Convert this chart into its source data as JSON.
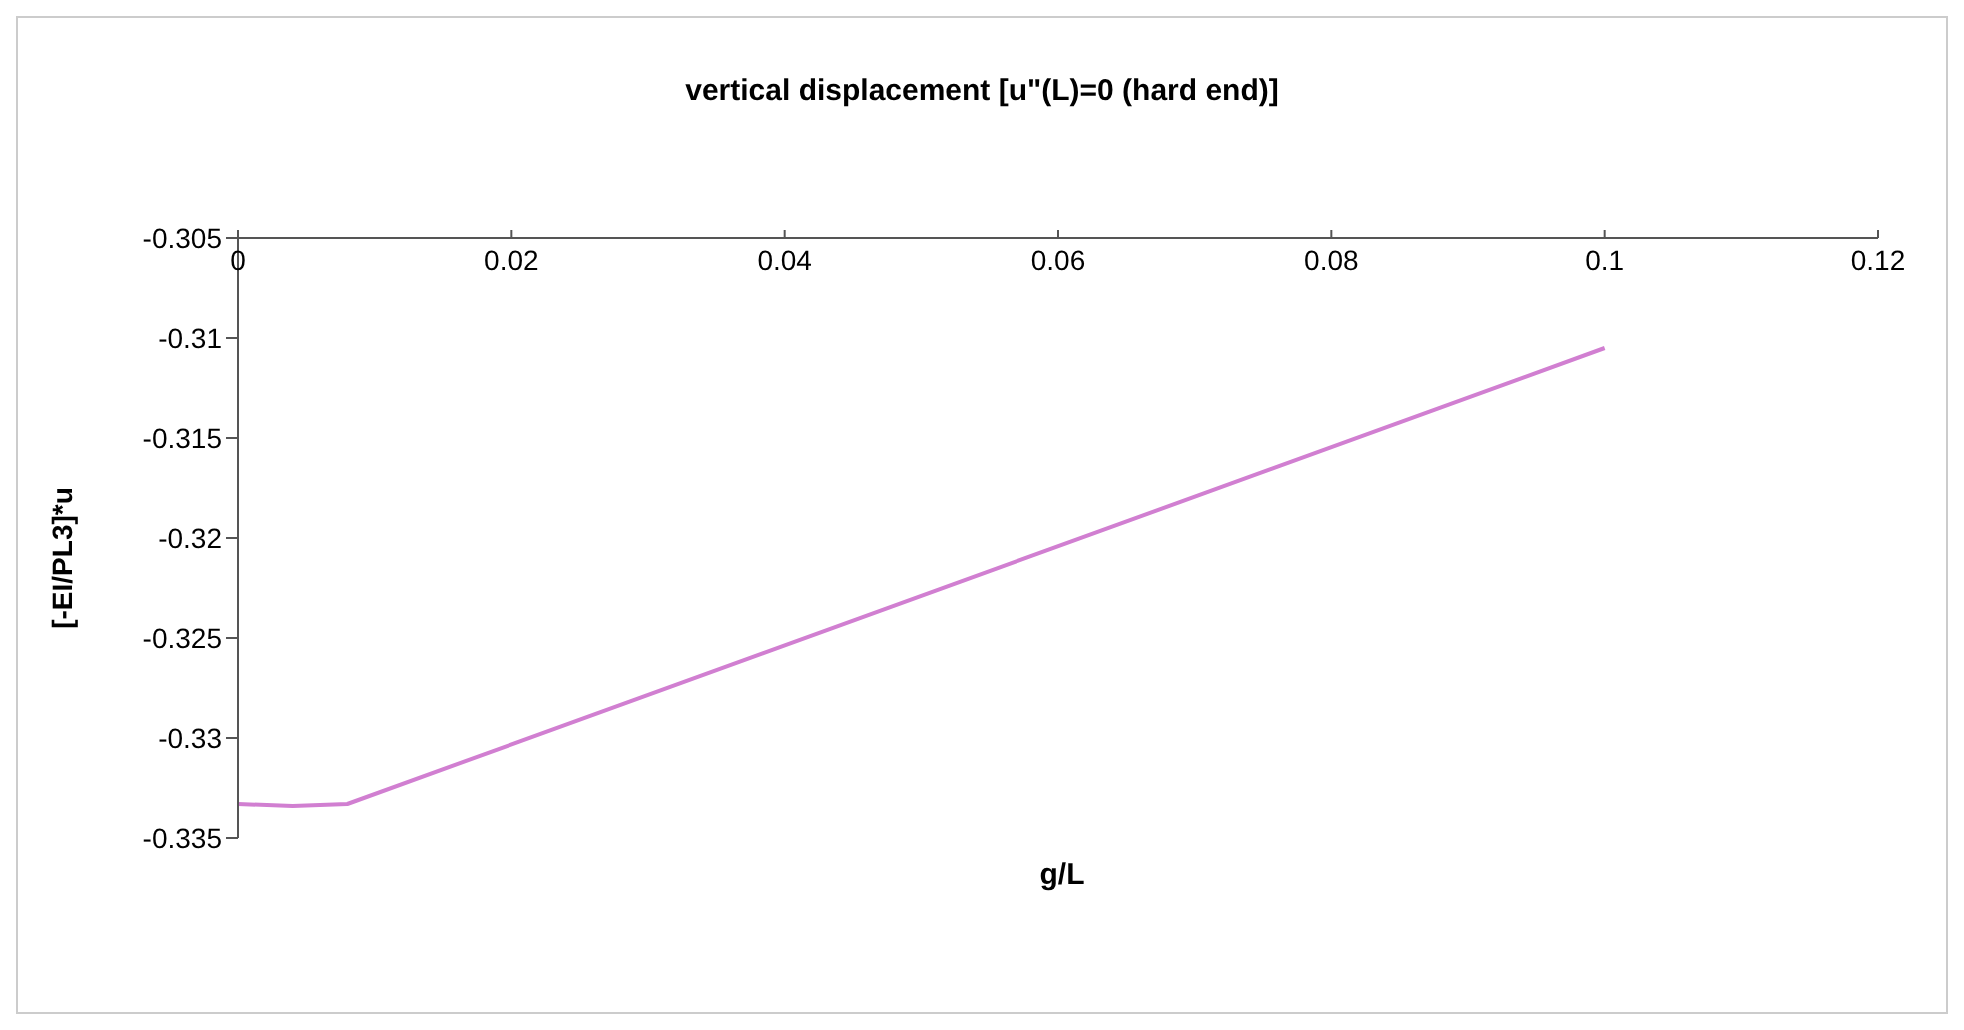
{
  "chart_data": {
    "type": "line",
    "title": "vertical displacement [u\"(L)=0 (hard end)]",
    "xlabel": "g/L",
    "ylabel": "[-EI/PL3]*u",
    "x": [
      0,
      0.004,
      0.008,
      0.1
    ],
    "series": [
      {
        "color": "#d17fd1",
        "values": [
          -0.3333,
          -0.3334,
          -0.3333,
          -0.3105
        ]
      }
    ],
    "xlim": [
      0,
      0.12
    ],
    "xticks": [
      0,
      0.02,
      0.04,
      0.06,
      0.08,
      0.1,
      0.12
    ],
    "ylim": [
      -0.335,
      -0.305
    ],
    "yticks": [
      -0.335,
      -0.33,
      -0.325,
      -0.32,
      -0.315,
      -0.31,
      -0.305
    ],
    "grid": false,
    "legend": false,
    "marker": "none",
    "line_style": "solid"
  }
}
